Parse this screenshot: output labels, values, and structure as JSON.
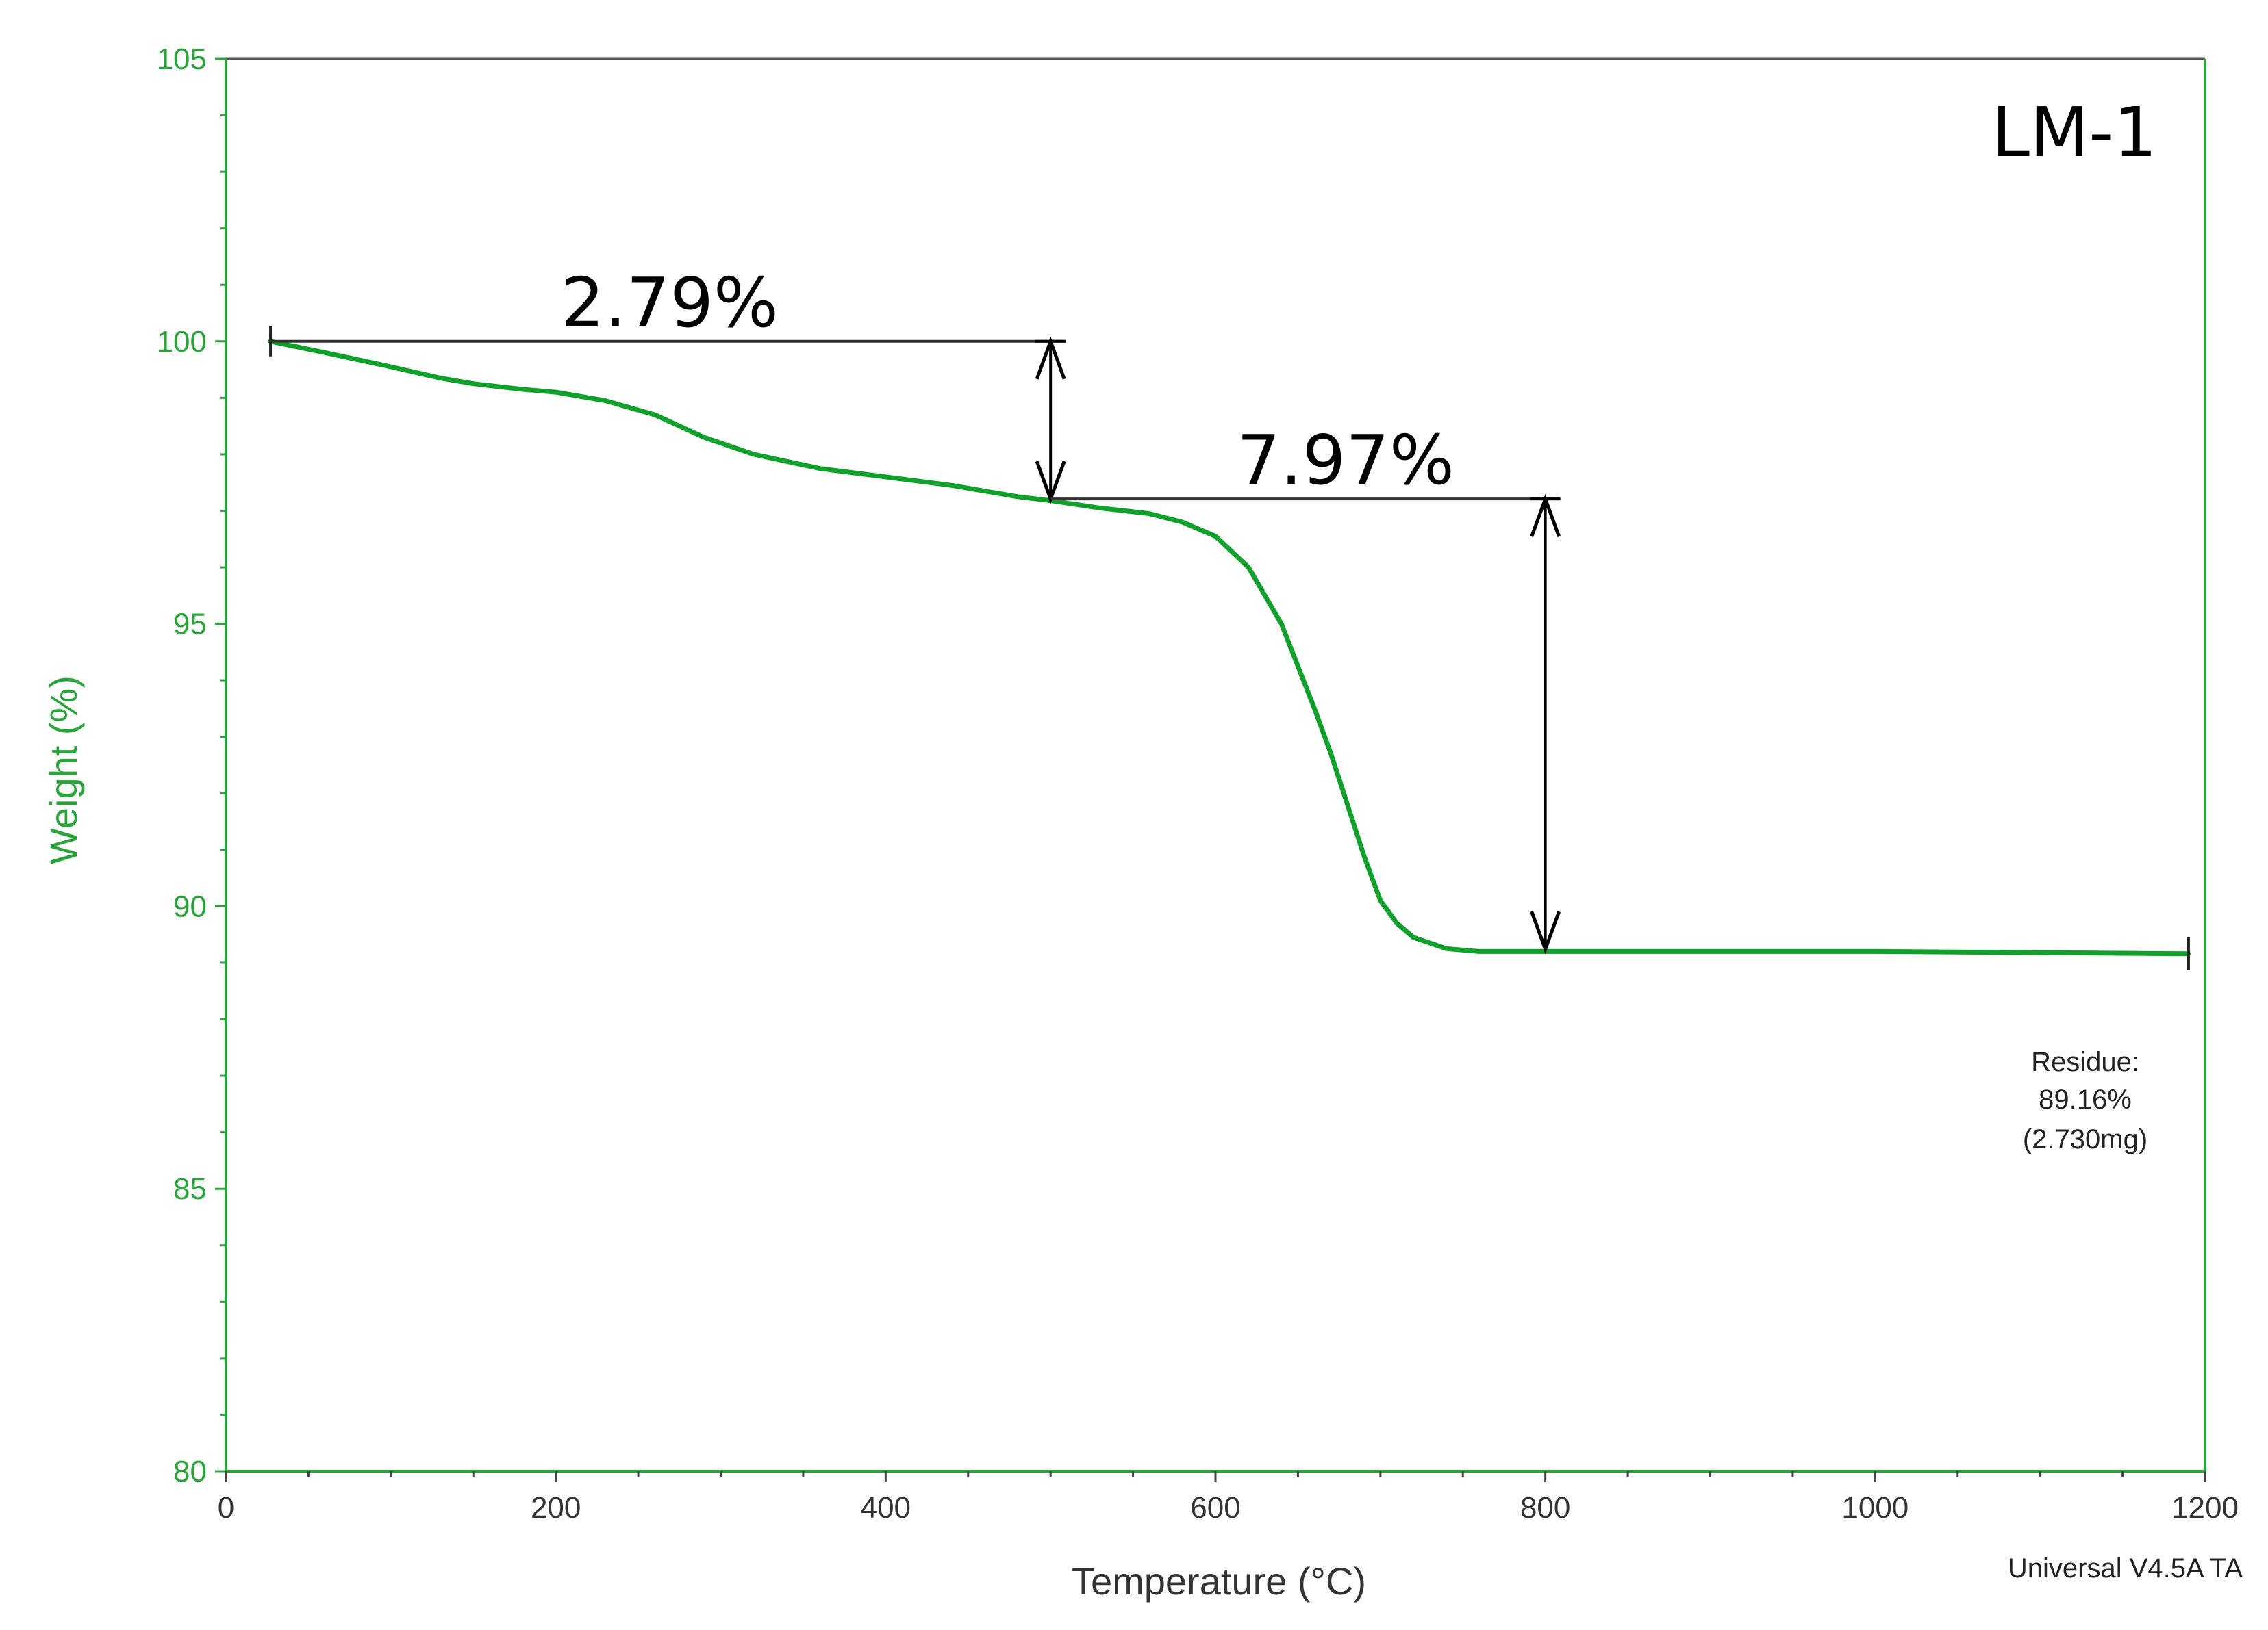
{
  "chart_data": {
    "type": "line",
    "title": "",
    "panel_label": "LM-1",
    "xlabel": "Temperature (°C)",
    "ylabel": "Weight (%)",
    "xlim": [
      0,
      1200
    ],
    "ylim": [
      80,
      105
    ],
    "x_ticks": [
      0,
      200,
      400,
      600,
      800,
      1000,
      1200
    ],
    "y_ticks": [
      80,
      85,
      90,
      95,
      100,
      105
    ],
    "grid": false,
    "colors": {
      "axis": "#2aa43a",
      "series": "#12a02c",
      "annotation": "#000000"
    },
    "series": [
      {
        "name": "LM-1 TGA",
        "x": [
          27,
          60,
          100,
          130,
          150,
          180,
          200,
          230,
          260,
          290,
          320,
          360,
          400,
          440,
          480,
          500,
          530,
          560,
          580,
          600,
          620,
          640,
          660,
          670,
          680,
          690,
          700,
          710,
          720,
          740,
          760,
          800,
          900,
          1000,
          1100,
          1190
        ],
        "y": [
          100.0,
          99.8,
          99.55,
          99.35,
          99.25,
          99.15,
          99.1,
          98.95,
          98.7,
          98.3,
          98.0,
          97.75,
          97.6,
          97.45,
          97.25,
          97.18,
          97.05,
          96.95,
          96.8,
          96.55,
          96.0,
          95.0,
          93.5,
          92.7,
          91.8,
          90.9,
          90.1,
          89.7,
          89.45,
          89.25,
          89.2,
          89.2,
          89.2,
          89.2,
          89.18,
          89.16
        ]
      }
    ],
    "annotations": [
      {
        "label": "2.79%",
        "from_x": 27,
        "to_x": 500,
        "level_y": 100.0,
        "arrow_x": 500,
        "arrow_from_y": 100.0,
        "arrow_to_y": 97.21
      },
      {
        "label": "7.97%",
        "from_x": 500,
        "to_x": 800,
        "level_y": 97.21,
        "arrow_x": 800,
        "arrow_from_y": 97.21,
        "arrow_to_y": 89.24
      }
    ],
    "residue": {
      "title": "Residue:",
      "percent": "89.16%",
      "mass": "(2.730mg)"
    },
    "footer": "Universal V4.5A TA"
  }
}
